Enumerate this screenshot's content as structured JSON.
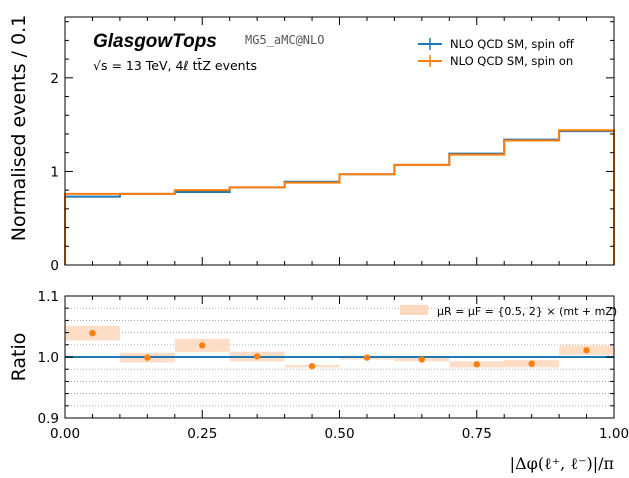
{
  "brand": "GlasgowTops",
  "generator": "MG5_aMC@NLO",
  "energy_note": "√s = 13 TeV, 4ℓ tt̄Z events",
  "legend": {
    "spin_off": "NLO QCD SM, spin off",
    "spin_on": "NLO QCD SM, spin on",
    "band": "μR = μF = {0.5, 2} × (mt + mZ)"
  },
  "colors": {
    "spin_off": "#1f77b4",
    "spin_on": "#ff7f0e",
    "band": "#ffd8bd",
    "axis": "#000000",
    "grid": "#888888"
  },
  "chart_data": [
    {
      "type": "step-histogram",
      "title": "",
      "xlabel": "",
      "ylabel": "Normalised events / 0.1",
      "xlim": [
        0,
        1
      ],
      "ylim": [
        0,
        2.65
      ],
      "yticks": [
        0,
        1,
        2
      ],
      "bin_edges": [
        0,
        0.1,
        0.2,
        0.3,
        0.4,
        0.5,
        0.6,
        0.7,
        0.8,
        0.9,
        1.0
      ],
      "series": [
        {
          "name": "NLO QCD SM, spin off",
          "values": [
            0.73,
            0.76,
            0.78,
            0.83,
            0.89,
            0.97,
            1.07,
            1.19,
            1.34,
            1.43
          ]
        },
        {
          "name": "NLO QCD SM, spin on",
          "values": [
            0.76,
            0.76,
            0.8,
            0.83,
            0.88,
            0.97,
            1.07,
            1.18,
            1.33,
            1.44
          ]
        }
      ]
    },
    {
      "type": "ratio",
      "xlabel": "|Δφ(ℓ⁺, ℓ⁻)|/π",
      "ylabel": "Ratio",
      "xlim": [
        0,
        1
      ],
      "ylim": [
        0.9,
        1.1
      ],
      "xticks": [
        0,
        0.25,
        0.5,
        0.75,
        1.0
      ],
      "xtick_labels": [
        "0.00",
        "0.25",
        "0.50",
        "0.75",
        "1.00"
      ],
      "yticks": [
        0.9,
        1.0,
        1.1
      ],
      "ytick_labels": [
        "0.9",
        "1.0",
        "1.1"
      ],
      "grid": true,
      "x": [
        0.05,
        0.15,
        0.25,
        0.35,
        0.45,
        0.55,
        0.65,
        0.75,
        0.85,
        0.95
      ],
      "ratio_values": [
        1.039,
        0.999,
        1.019,
        1.001,
        0.985,
        0.999,
        0.996,
        0.988,
        0.989,
        1.011
      ],
      "band_low": [
        1.027,
        0.991,
        1.008,
        0.993,
        0.983,
        0.996,
        0.993,
        0.983,
        0.983,
        1.003
      ],
      "band_high": [
        1.051,
        1.007,
        1.03,
        1.009,
        0.987,
        1.002,
        0.999,
        0.993,
        0.995,
        1.019
      ],
      "reference": 1.0
    }
  ]
}
